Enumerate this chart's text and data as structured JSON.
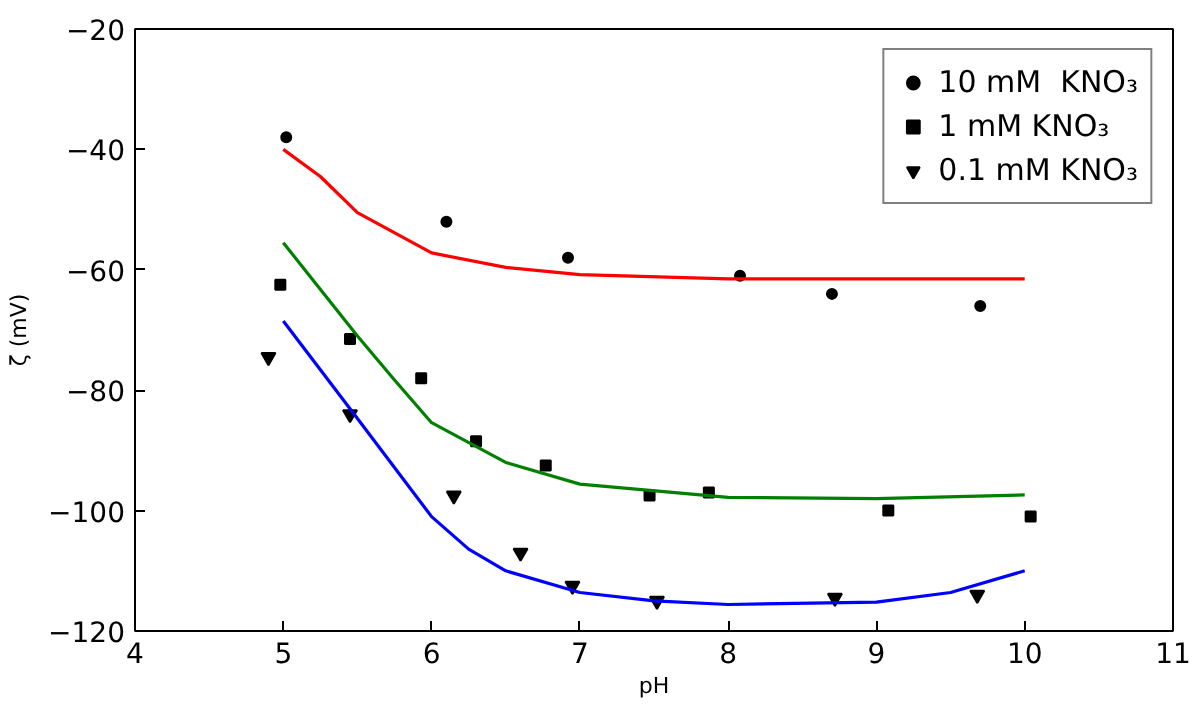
{
  "chart_data": {
    "type": "scatter",
    "xlabel": "pH",
    "ylabel": "ζ (mV)",
    "xlim": [
      4,
      11
    ],
    "ylim": [
      -120,
      -20
    ],
    "xticks": [
      4,
      5,
      6,
      7,
      8,
      9,
      10,
      11
    ],
    "yticks": [
      -120,
      -100,
      -80,
      -60,
      -40,
      -20
    ],
    "grid": false,
    "legend": "top right",
    "series": [
      {
        "name": "10 mM  KNO₃",
        "marker": "circle",
        "color": "#000000",
        "x": [
          5.02,
          6.1,
          6.92,
          8.08,
          8.7,
          9.7
        ],
        "values": [
          -38,
          -52,
          -58,
          -61,
          -64,
          -66
        ]
      },
      {
        "name": "1 mM KNO₃",
        "marker": "square",
        "color": "#000000",
        "x": [
          4.98,
          5.45,
          5.93,
          6.3,
          6.77,
          7.47,
          7.87,
          9.08,
          10.04
        ],
        "values": [
          -62.5,
          -71.5,
          -78,
          -88.5,
          -92.5,
          -97.5,
          -97,
          -100,
          -101
        ]
      },
      {
        "name": "0.1 mM KNO₃",
        "marker": "triangle",
        "color": "#000000",
        "x": [
          4.9,
          5.45,
          6.15,
          6.6,
          6.95,
          7.52,
          8.72,
          9.68
        ],
        "values": [
          -74.5,
          -84,
          -97.5,
          -107,
          -112.5,
          -115,
          -114.5,
          -114
        ]
      },
      {
        "type": "line",
        "color": "#ff0000",
        "x": [
          5,
          5.25,
          5.5,
          6,
          6.5,
          7,
          8,
          9,
          10
        ],
        "values": [
          -40,
          -44.5,
          -50.5,
          -57.2,
          -59.6,
          -60.8,
          -61.5,
          -61.5,
          -61.5
        ]
      },
      {
        "type": "line",
        "color": "#008000",
        "x": [
          5,
          5.5,
          5.75,
          6,
          6.5,
          7,
          8,
          9,
          10
        ],
        "values": [
          -55.5,
          -71,
          -78.3,
          -85.4,
          -92,
          -95.6,
          -97.8,
          -98,
          -97.4
        ]
      },
      {
        "type": "line",
        "color": "#0000ff",
        "x": [
          5,
          5.5,
          6,
          6.25,
          6.5,
          7,
          7.5,
          8,
          9,
          9.5,
          10
        ],
        "values": [
          -68.5,
          -84.7,
          -101,
          -106.4,
          -110,
          -113.6,
          -115,
          -115.6,
          -115.2,
          -113.6,
          -110
        ]
      }
    ]
  }
}
